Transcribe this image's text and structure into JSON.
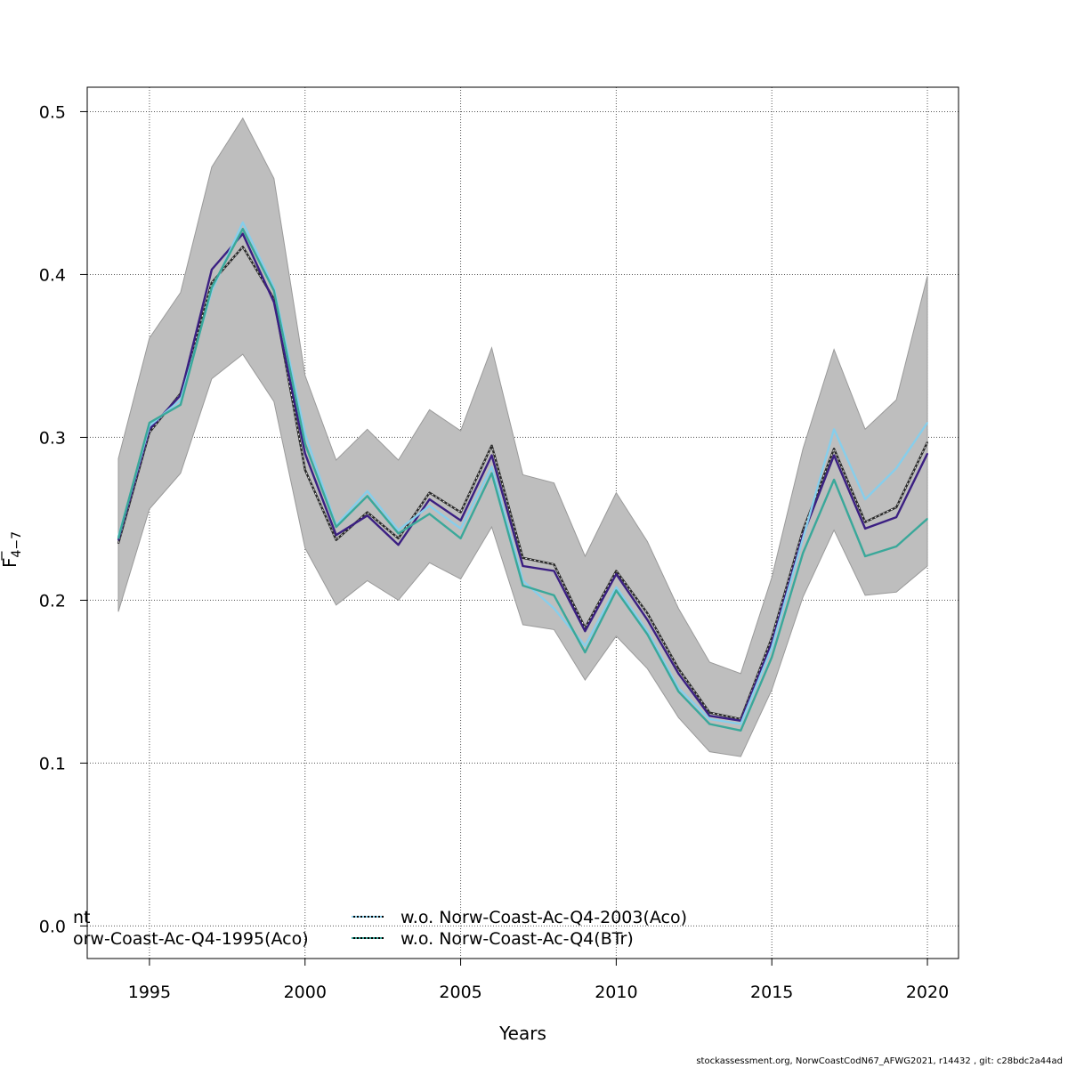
{
  "chart_data": {
    "type": "line",
    "xlabel": "Years",
    "ylabel_main": "F",
    "ylabel_sub": "4−7",
    "xlim": [
      1993,
      2021
    ],
    "ylim": [
      -0.02,
      0.515
    ],
    "xticks": [
      1995,
      2000,
      2005,
      2010,
      2015,
      2020
    ],
    "yticks": [
      0.0,
      0.1,
      0.2,
      0.3,
      0.4,
      0.5
    ],
    "xtick_labels": [
      "1995",
      "2000",
      "2005",
      "2010",
      "2015",
      "2020"
    ],
    "ytick_labels": [
      "0.0",
      "0.1",
      "0.2",
      "0.3",
      "0.4",
      "0.5"
    ],
    "grid": true,
    "x": [
      1994,
      1995,
      1996,
      1997,
      1998,
      1999,
      2000,
      2001,
      2002,
      2003,
      2004,
      2005,
      2006,
      2007,
      2008,
      2009,
      2010,
      2011,
      2012,
      2013,
      2014,
      2015,
      2016,
      2017,
      2018,
      2019,
      2020
    ],
    "band": {
      "color": "#bebebe",
      "upper": [
        0.287,
        0.361,
        0.389,
        0.466,
        0.496,
        0.459,
        0.338,
        0.286,
        0.305,
        0.286,
        0.317,
        0.304,
        0.355,
        0.277,
        0.272,
        0.227,
        0.266,
        0.236,
        0.195,
        0.162,
        0.155,
        0.214,
        0.293,
        0.354,
        0.305,
        0.323,
        0.399
      ],
      "lower": [
        0.193,
        0.256,
        0.278,
        0.336,
        0.351,
        0.322,
        0.232,
        0.197,
        0.212,
        0.2,
        0.223,
        0.213,
        0.245,
        0.185,
        0.182,
        0.151,
        0.178,
        0.158,
        0.128,
        0.107,
        0.104,
        0.145,
        0.202,
        0.243,
        0.203,
        0.205,
        0.221
      ]
    },
    "series": [
      {
        "name": "",
        "color": "#2a2a2a",
        "dashed_overlay": false,
        "values": [
          0.235,
          0.303,
          0.327,
          0.395,
          0.417,
          0.385,
          0.28,
          0.237,
          0.254,
          0.238,
          0.266,
          0.254,
          0.295,
          0.226,
          0.222,
          0.183,
          0.218,
          0.192,
          0.158,
          0.131,
          0.127,
          0.177,
          0.243,
          0.293,
          0.248,
          0.257,
          0.297
        ]
      },
      {
        "name": "",
        "color": "#3b1f82",
        "dashed_overlay": false,
        "values": [
          0.237,
          0.305,
          0.326,
          0.403,
          0.425,
          0.383,
          0.29,
          0.24,
          0.252,
          0.234,
          0.262,
          0.249,
          0.289,
          0.221,
          0.218,
          0.181,
          0.216,
          0.188,
          0.155,
          0.129,
          0.126,
          0.174,
          0.24,
          0.289,
          0.244,
          0.251,
          0.29
        ]
      },
      {
        "name": "",
        "color": "#87ceeb",
        "dashed_overlay": false,
        "values": [
          0.239,
          0.307,
          0.323,
          0.39,
          0.432,
          0.392,
          0.302,
          0.246,
          0.267,
          0.243,
          0.258,
          0.244,
          0.282,
          0.212,
          0.195,
          0.172,
          0.208,
          0.181,
          0.146,
          0.127,
          0.124,
          0.171,
          0.238,
          0.305,
          0.262,
          0.281,
          0.309
        ]
      },
      {
        "name": "",
        "color": "#3aa89a",
        "dashed_overlay": false,
        "values": [
          0.238,
          0.309,
          0.32,
          0.392,
          0.428,
          0.39,
          0.296,
          0.245,
          0.264,
          0.241,
          0.253,
          0.238,
          0.278,
          0.209,
          0.203,
          0.168,
          0.206,
          0.179,
          0.144,
          0.124,
          0.12,
          0.165,
          0.229,
          0.274,
          0.227,
          0.233,
          0.25
        ]
      }
    ],
    "legend": {
      "position": "bottom",
      "entries": [
        {
          "label": "nt",
          "color": "#2a2a2a",
          "column": 0,
          "row": 0,
          "show_line": false
        },
        {
          "label": "orw-Coast-Ac-Q4-1995(Aco)",
          "color": "#3b1f82",
          "column": 0,
          "row": 1,
          "show_line": false
        },
        {
          "label": "w.o. Norw-Coast-Ac-Q4-2003(Aco)",
          "color": "#87ceeb",
          "column": 1,
          "row": 0,
          "show_line": true
        },
        {
          "label": "w.o. Norw-Coast-Ac-Q4(BTr)",
          "color": "#3aa89a",
          "column": 1,
          "row": 1,
          "show_line": true
        }
      ]
    }
  },
  "footer": {
    "text": "stockassessment.org, NorwCoastCodN67_AFWG2021, r14432 , git: c28bdc2a44ad"
  }
}
